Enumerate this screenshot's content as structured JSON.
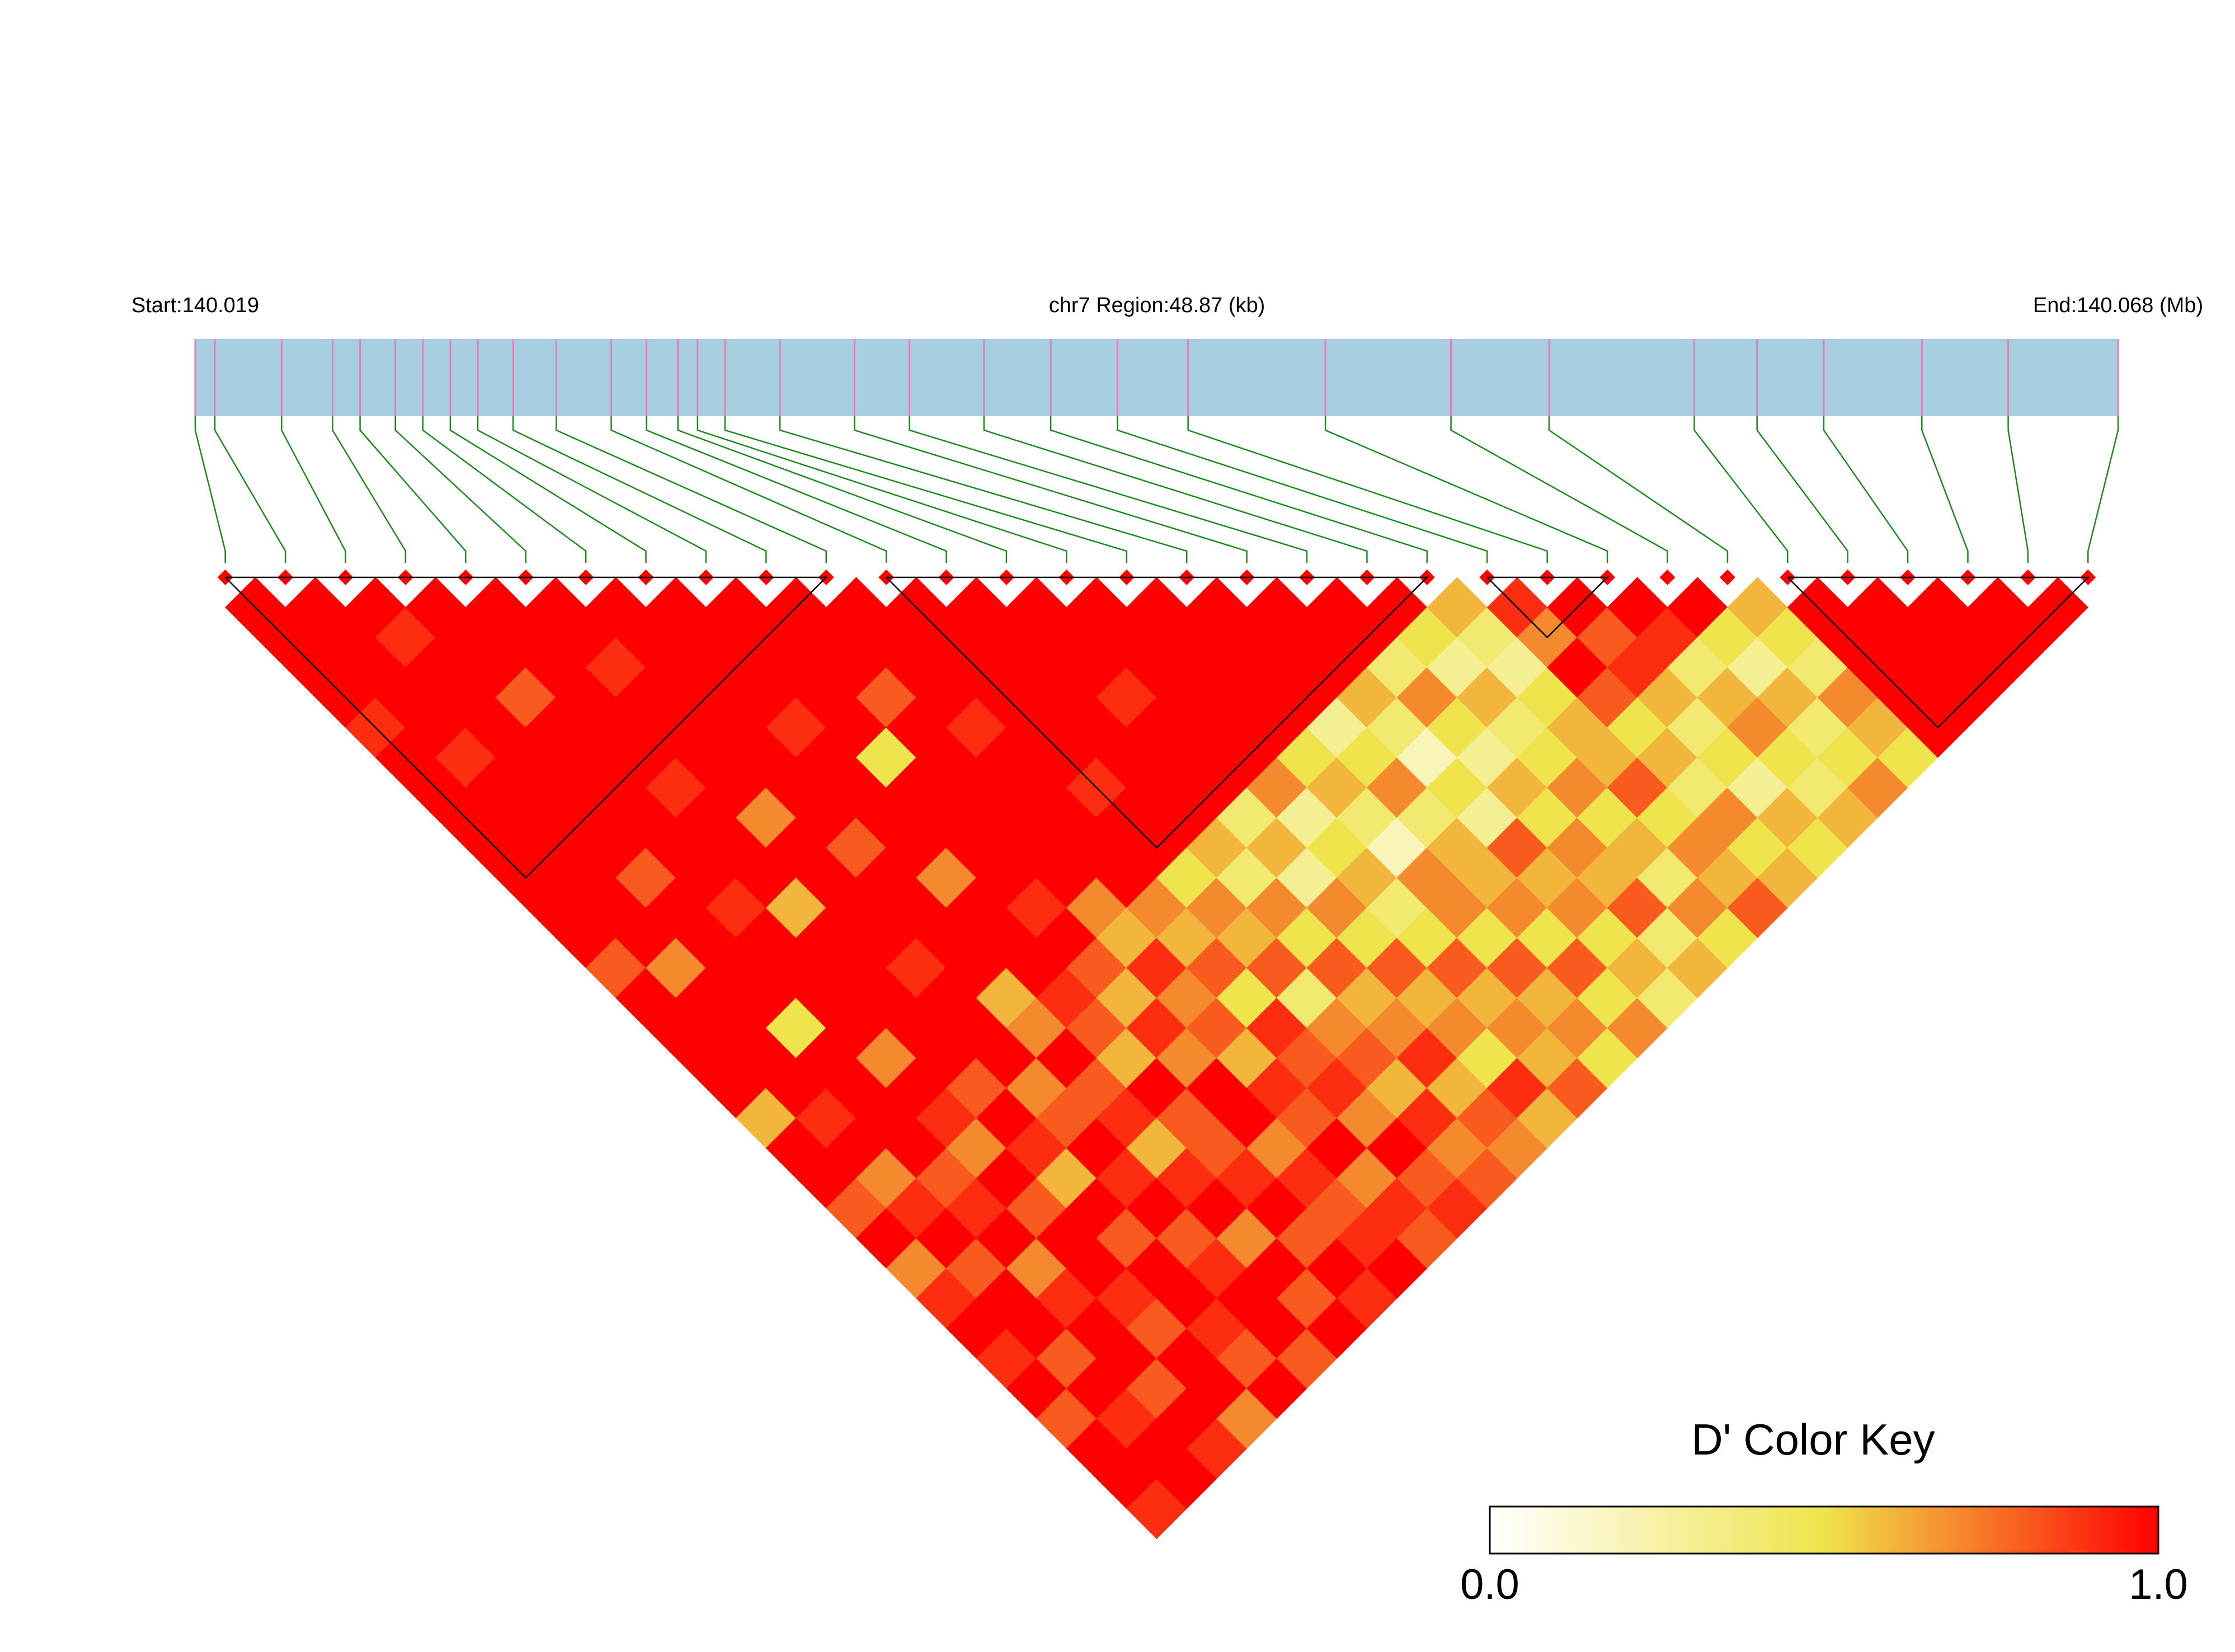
{
  "chart_data": {
    "type": "ld-heatmap",
    "start_label": "Start:140.019",
    "region_label": "chr7 Region:48.87 (kb)",
    "end_label": "End:140.068 (Mb)",
    "xlim": [
      140.019,
      140.068
    ],
    "track_color": "#a8cfe0",
    "snp_color": "#e47fb5",
    "connector_color": "#1a8a1a",
    "positions": [
      140.019,
      140.0195,
      140.0212,
      140.0225,
      140.0232,
      140.0241,
      140.0248,
      140.0255,
      140.0262,
      140.0271,
      140.0282,
      140.0296,
      140.0305,
      140.0313,
      140.0318,
      140.0325,
      140.0339,
      140.0358,
      140.0372,
      140.0391,
      140.0408,
      140.0425,
      140.0443,
      140.0478,
      140.051,
      140.0535,
      140.0572,
      140.0588,
      140.0605,
      140.063,
      140.0652,
      140.068
    ],
    "ld": [
      [
        1,
        1,
        1,
        1,
        0.9,
        1,
        1,
        1,
        1,
        1,
        1,
        1,
        0.8,
        1,
        1,
        1,
        1,
        0.6,
        1,
        1,
        0.8,
        1,
        0.7,
        0.9,
        1,
        0.9,
        1,
        0.8,
        1,
        1,
        0.9
      ],
      [
        1,
        1,
        1,
        1,
        1,
        0.9,
        1,
        1,
        1,
        1,
        1,
        1,
        0.7,
        1,
        1,
        1,
        1,
        0.9,
        1,
        0.7,
        0.9,
        1,
        0.8,
        1,
        1,
        0.8,
        1,
        0.9,
        1,
        1
      ],
      [
        1,
        0.9,
        1,
        1,
        1,
        1,
        1,
        1,
        1,
        0.8,
        1,
        1,
        1,
        1,
        0.5,
        1,
        1,
        1,
        1,
        0.8,
        0.9,
        1,
        0.7,
        0.9,
        1,
        1,
        0.8,
        1,
        0.9
      ],
      [
        1,
        1,
        1,
        0.8,
        1,
        1,
        1,
        1,
        1,
        1,
        0.9,
        1,
        1,
        1,
        1,
        0.7,
        1,
        0.9,
        0.7,
        1,
        0.8,
        1,
        1,
        0.9,
        0.8,
        1,
        1,
        0.7
      ],
      [
        1,
        1,
        1,
        1,
        1,
        1,
        0.9,
        1,
        1,
        1,
        0.6,
        1,
        1,
        1,
        1,
        1,
        0.8,
        1,
        0.9,
        0.6,
        1,
        0.8,
        1,
        1,
        0.9,
        0.8,
        1
      ],
      [
        1,
        1,
        0.9,
        1,
        1,
        1,
        1,
        0.7,
        1,
        1,
        1,
        1,
        0.9,
        1,
        1,
        1,
        0.7,
        0.8,
        1,
        0.9,
        1,
        0.8,
        0.9,
        1,
        1,
        0.8
      ],
      [
        1,
        1,
        1,
        1,
        1,
        1,
        1,
        1,
        0.8,
        1,
        1,
        1,
        1,
        0.6,
        0.7,
        1,
        0.8,
        0.9,
        0.6,
        0.9,
        1,
        0.7,
        1,
        0.8,
        1
      ],
      [
        1,
        1,
        1,
        1,
        0.9,
        1,
        1,
        1,
        1,
        0.7,
        1,
        1,
        1,
        0.9,
        0.8,
        0.6,
        1,
        0.8,
        0.8,
        0.9,
        1,
        0.8,
        1,
        0.9
      ],
      [
        1,
        1,
        1,
        1,
        1,
        0.5,
        1,
        1,
        1,
        1,
        0.9,
        1,
        0.8,
        0.6,
        0.9,
        0.7,
        1,
        1,
        0.7,
        0.9,
        0.8,
        0.9,
        1
      ],
      [
        1,
        1,
        1,
        0.8,
        1,
        1,
        1,
        1,
        1,
        1,
        0.7,
        0.6,
        0.9,
        0.7,
        0.8,
        0.6,
        0.9,
        0.8,
        1,
        0.7,
        0.9,
        0.8
      ],
      [
        1,
        1,
        1,
        1,
        0.9,
        1,
        1,
        1,
        1,
        1,
        0.7,
        0.6,
        0.8,
        0.5,
        0.9,
        0.8,
        0.9,
        0.7,
        1,
        0.8,
        0.9
      ],
      [
        1,
        1,
        1,
        1,
        1,
        1,
        0.9,
        1,
        1,
        0.5,
        0.7,
        0.6,
        0.8,
        0.4,
        0.7,
        0.8,
        0.6,
        0.9,
        0.7,
        0.8
      ],
      [
        1,
        1,
        1,
        1,
        1,
        1,
        1,
        1,
        0.6,
        0.4,
        0.7,
        0.5,
        0.8,
        0.6,
        0.7,
        0.9,
        0.6,
        0.8,
        0.7
      ],
      [
        1,
        1,
        1,
        0.9,
        1,
        1,
        1,
        0.4,
        0.6,
        0.3,
        0.7,
        0.5,
        0.8,
        0.6,
        0.7,
        0.5,
        0.9,
        0.6
      ],
      [
        1,
        1,
        1,
        1,
        1,
        1,
        0.7,
        0.3,
        0.5,
        0.6,
        0.4,
        0.5,
        0.8,
        0.6,
        0.7,
        0.6,
        0.8
      ],
      [
        1,
        1,
        1,
        1,
        1,
        0.5,
        0.6,
        0.4,
        0.2,
        0.7,
        0.7,
        0.5,
        0.8,
        0.6,
        0.7,
        0.5
      ],
      [
        1,
        1,
        1,
        1,
        0.3,
        0.5,
        0.7,
        0.4,
        0.6,
        0.6,
        0.7,
        0.5,
        0.8,
        0.5,
        0.7
      ],
      [
        1,
        1,
        1,
        0.6,
        0.4,
        0.2,
        0.5,
        0.3,
        0.8,
        0.6,
        0.7,
        0.5,
        0.6,
        0.4
      ],
      [
        1,
        1,
        0.4,
        0.7,
        0.5,
        0.3,
        0.6,
        0.5,
        0.7,
        0.6,
        0.8,
        0.4,
        0.6
      ],
      [
        1,
        0.5,
        0.3,
        0.6,
        0.4,
        0.5,
        0.7,
        0.5,
        0.6,
        0.4,
        0.7,
        0.5
      ],
      [
        0.6,
        0.4,
        0.3,
        0.5,
        0.6,
        0.6,
        0.8,
        0.5,
        0.7,
        0.6,
        0.8
      ],
      [
        0.9,
        0.7,
        1,
        0.8,
        0.5,
        0.6,
        0.4,
        0.7,
        0.5,
        0.6
      ],
      [
        1,
        0.8,
        0.9,
        0.6,
        0.4,
        0.5,
        0.3,
        0.6,
        0.5
      ],
      [
        1,
        0.9,
        0.4,
        0.6,
        0.7,
        0.5,
        0.4,
        0.6
      ],
      [
        1,
        0.5,
        0.3,
        0.6,
        0.4,
        0.5,
        0.7
      ],
      [
        0.6,
        0.5,
        0.4,
        0.7,
        0.6,
        0.5
      ],
      [
        1,
        1,
        1,
        1,
        1
      ],
      [
        1,
        1,
        1,
        1
      ],
      [
        1,
        1,
        1
      ],
      [
        1,
        1
      ],
      [
        1
      ]
    ],
    "blocks": [
      [
        0,
        10
      ],
      [
        11,
        20
      ],
      [
        21,
        23
      ],
      [
        26,
        31
      ]
    ],
    "legend": {
      "title": "D' Color Key",
      "colors": [
        "#ffffff",
        "#efe44c",
        "#ff0000"
      ],
      "lim": [
        0,
        1
      ],
      "ticks": [
        {
          "value": 0,
          "label": "0.0"
        },
        {
          "value": 1,
          "label": "1.0"
        }
      ]
    }
  }
}
